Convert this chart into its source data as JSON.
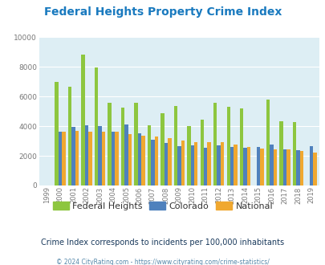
{
  "title": "Federal Heights Property Crime Index",
  "years": [
    1999,
    2000,
    2001,
    2002,
    2003,
    2004,
    2005,
    2006,
    2007,
    2008,
    2009,
    2010,
    2011,
    2012,
    2013,
    2014,
    2015,
    2016,
    2017,
    2018,
    2019
  ],
  "federal_heights": [
    0,
    7000,
    6650,
    8800,
    7950,
    5550,
    5250,
    5600,
    4050,
    4850,
    5350,
    4000,
    4450,
    5600,
    5300,
    5200,
    0,
    5800,
    4350,
    4300,
    0
  ],
  "colorado": [
    0,
    3650,
    3950,
    4050,
    4000,
    3650,
    4100,
    3500,
    3100,
    2850,
    2650,
    2700,
    2550,
    2700,
    2600,
    2550,
    2600,
    2750,
    2450,
    2400,
    2650
  ],
  "national": [
    0,
    3650,
    3700,
    3600,
    3650,
    3600,
    3450,
    3350,
    3300,
    3200,
    3050,
    2900,
    2900,
    2900,
    2750,
    2600,
    2500,
    2450,
    2450,
    2350,
    2200
  ],
  "fh_color": "#8dc63f",
  "co_color": "#4f81bd",
  "nat_color": "#f0a830",
  "bg_color": "#ddeef4",
  "title_color": "#1a7abf",
  "subtitle": "Crime Index corresponds to incidents per 100,000 inhabitants",
  "subtitle_color": "#1a3a5c",
  "footer": "© 2024 CityRating.com - https://www.cityrating.com/crime-statistics/",
  "footer_color": "#5588aa",
  "ylim": [
    0,
    10000
  ],
  "yticks": [
    0,
    2000,
    4000,
    6000,
    8000,
    10000
  ]
}
